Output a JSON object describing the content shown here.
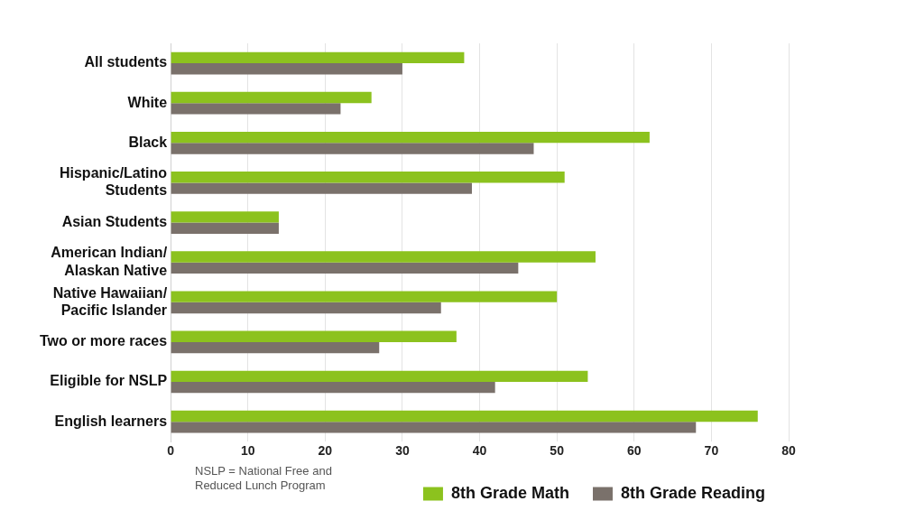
{
  "chart_data": {
    "type": "bar",
    "orientation": "horizontal",
    "categories": [
      "All students",
      "White",
      "Black",
      [
        "Hispanic/Latino",
        "Students"
      ],
      "Asian Students",
      [
        "American Indian/",
        "Alaskan Native"
      ],
      [
        "Native Hawaiian/",
        "Pacific Islander"
      ],
      "Two or more races",
      "Eligible for NSLP",
      "English learners"
    ],
    "series": [
      {
        "name": "8th Grade Math",
        "color": "#8cc21e",
        "values": [
          38,
          26,
          62,
          51,
          14,
          55,
          50,
          37,
          54,
          76
        ]
      },
      {
        "name": "8th Grade Reading",
        "color": "#7a716b",
        "values": [
          30,
          22,
          47,
          39,
          14,
          45,
          35,
          27,
          42,
          68
        ]
      }
    ],
    "xlim": [
      0,
      80
    ],
    "xticks": [
      0,
      10,
      20,
      30,
      40,
      50,
      60,
      70,
      80
    ],
    "grid": true,
    "legend": "bottom-right",
    "annotations": [
      "NSLP = National Free and Reduced Lunch Program"
    ]
  }
}
